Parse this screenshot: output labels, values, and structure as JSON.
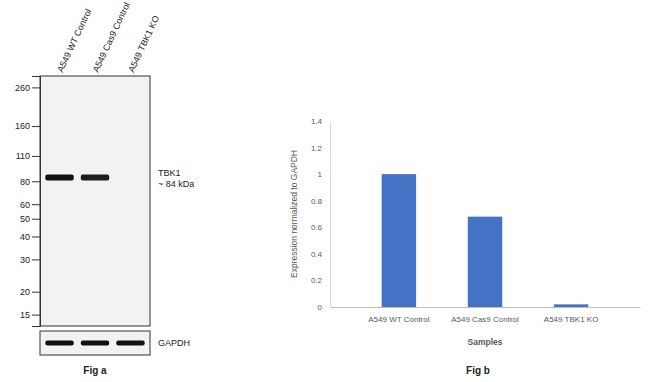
{
  "chart_data": [
    {
      "type": "blot",
      "caption": "Fig a",
      "lanes": [
        "A549 WT Control",
        "A549 Cas9 Control",
        "A549 TBK1 KO"
      ],
      "log": "y",
      "ylim": [
        13,
        300
      ],
      "yticks": [
        260,
        160,
        110,
        80,
        60,
        50,
        40,
        30,
        20,
        15
      ],
      "bands": [
        {
          "name": "TBK1",
          "annotation": "~ 84 kDa",
          "kda": 84,
          "values": [
            1,
            0.95,
            0
          ]
        }
      ],
      "loading_control": {
        "name": "GAPDH",
        "values": [
          1,
          1,
          1
        ]
      }
    },
    {
      "type": "bar",
      "caption": "Fig b",
      "categories": [
        "A549 WT Control",
        "A549 Cas9 Control",
        "A549 TBK1 KO"
      ],
      "values": [
        1,
        0.68,
        0.02
      ],
      "color": "#4472c4",
      "xlabel": "Samples",
      "ylabel": "Expression normalized to GAPDH",
      "ylim": [
        0,
        1.4
      ],
      "yticks": [
        0,
        0.2,
        0.4,
        0.6,
        0.8,
        1,
        1.2,
        1.4
      ]
    }
  ]
}
